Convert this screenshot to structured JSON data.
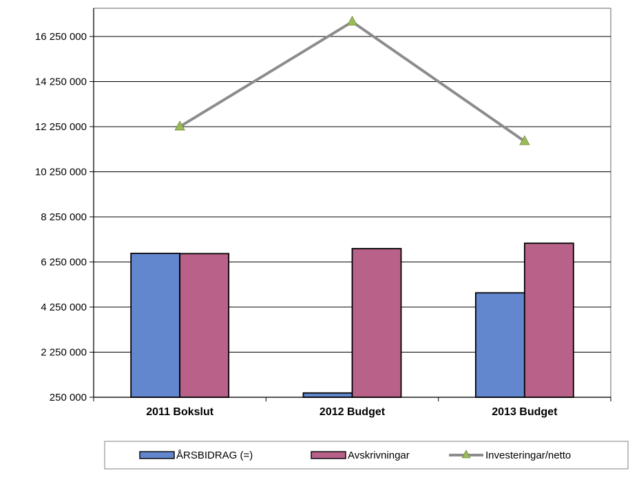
{
  "chart_data": {
    "type": "bar",
    "categories": [
      "2011  Bokslut",
      "2012  Budget",
      "2013  Budget"
    ],
    "series": [
      {
        "name": "ÅRSBIDRAG (=)",
        "kind": "bar",
        "color": "#6287CF",
        "values": [
          6630000,
          440000,
          4880000
        ]
      },
      {
        "name": "Avskrivningar",
        "kind": "bar",
        "color": "#B8628A",
        "values": [
          6620000,
          6840000,
          7080000
        ]
      },
      {
        "name": "Investeringar/netto",
        "kind": "line",
        "color": "#8C8C8C",
        "marker": "triangle",
        "marker_color": "#9BBB59",
        "values": [
          12250000,
          16900000,
          11600000
        ]
      }
    ],
    "y_ticks": [
      "16 250 000",
      "14 250 000",
      "12 250 000",
      "10 250 000",
      "8 250 000",
      "6 250 000",
      "4 250 000",
      "2 250 000",
      "250 000"
    ],
    "ylim": [
      250000,
      17500000
    ],
    "grid": true,
    "legend_position": "bottom"
  }
}
